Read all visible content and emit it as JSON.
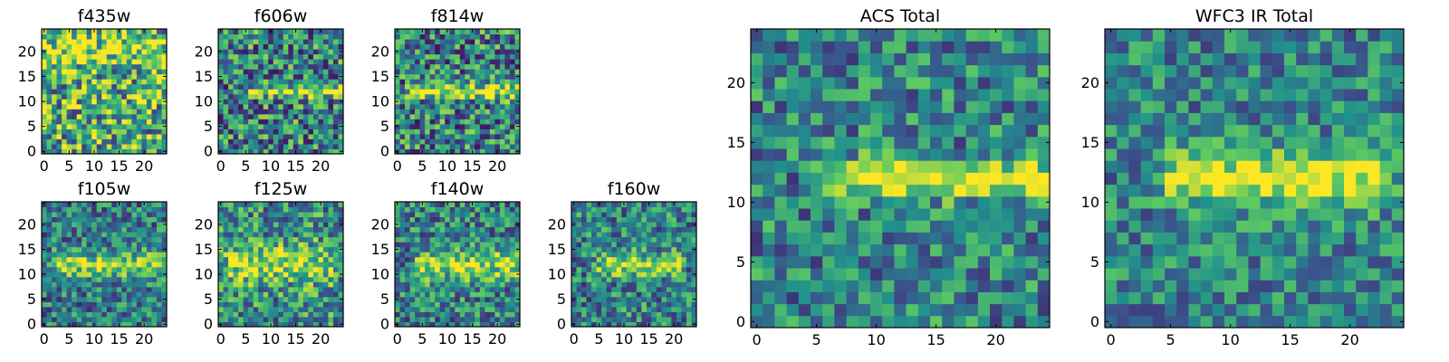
{
  "figure": {
    "colormap": [
      "#440154",
      "#3b528b",
      "#21918c",
      "#5ec962",
      "#fde725"
    ]
  },
  "chart_data": [
    {
      "type": "heatmap",
      "title": "f435w",
      "xticks": [
        0,
        5,
        10,
        15,
        20
      ],
      "yticks": [
        0,
        5,
        10,
        15,
        20
      ],
      "grid_size": 25,
      "features": [
        {
          "row": 20,
          "col": 0,
          "row_width": 3,
          "amp": 0.25
        }
      ],
      "base": 0.62,
      "noise": 0.45,
      "seed": 11
    },
    {
      "type": "heatmap",
      "title": "f606w",
      "xticks": [
        0,
        5,
        10,
        15,
        20
      ],
      "yticks": [
        0,
        5,
        10,
        15,
        20
      ],
      "grid_size": 25,
      "features": [
        {
          "row": 12,
          "col_start": 7,
          "col_end": 24,
          "row_width": 1.2,
          "amp": 0.45
        }
      ],
      "base": 0.45,
      "noise": 0.4,
      "seed": 23
    },
    {
      "type": "heatmap",
      "title": "f814w",
      "xticks": [
        0,
        5,
        10,
        15,
        20
      ],
      "yticks": [
        0,
        5,
        10,
        15,
        20
      ],
      "grid_size": 25,
      "features": [
        {
          "row": 12,
          "col_start": 4,
          "col_end": 24,
          "row_width": 1.4,
          "amp": 0.5
        }
      ],
      "base": 0.45,
      "noise": 0.4,
      "seed": 37
    },
    {
      "type": "heatmap",
      "title": "f105w",
      "xticks": [
        0,
        5,
        10,
        15,
        20
      ],
      "yticks": [
        0,
        5,
        10,
        15,
        20
      ],
      "grid_size": 25,
      "features": [
        {
          "row": 12,
          "col_start": 3,
          "col_end": 24,
          "row_width": 2.5,
          "amp": 0.4
        }
      ],
      "base": 0.42,
      "noise": 0.3,
      "seed": 41
    },
    {
      "type": "heatmap",
      "title": "f125w",
      "xticks": [
        0,
        5,
        10,
        15,
        20
      ],
      "yticks": [
        0,
        5,
        10,
        15,
        20
      ],
      "grid_size": 25,
      "features": [
        {
          "row": 12,
          "col_start": 2,
          "col_end": 22,
          "row_width": 3.5,
          "amp": 0.35
        }
      ],
      "base": 0.5,
      "noise": 0.35,
      "seed": 53
    },
    {
      "type": "heatmap",
      "title": "f140w",
      "xticks": [
        0,
        5,
        10,
        15,
        20
      ],
      "yticks": [
        0,
        5,
        10,
        15,
        20
      ],
      "grid_size": 25,
      "features": [
        {
          "row": 12,
          "col_start": 5,
          "col_end": 24,
          "row_width": 3.0,
          "amp": 0.4
        }
      ],
      "base": 0.45,
      "noise": 0.32,
      "seed": 67
    },
    {
      "type": "heatmap",
      "title": "f160w",
      "xticks": [
        0,
        5,
        10,
        15,
        20
      ],
      "yticks": [
        0,
        5,
        10,
        15,
        20
      ],
      "grid_size": 25,
      "features": [
        {
          "row": 12,
          "col_start": 6,
          "col_end": 20,
          "row_width": 2.2,
          "amp": 0.45
        }
      ],
      "base": 0.45,
      "noise": 0.32,
      "seed": 79
    },
    {
      "type": "heatmap",
      "title": "ACS Total",
      "xticks": [
        0,
        5,
        10,
        15,
        20
      ],
      "yticks": [
        0,
        5,
        10,
        15,
        20
      ],
      "grid_size": 25,
      "features": [
        {
          "row": 12,
          "col_start": 7,
          "col_end": 24,
          "row_width": 1.6,
          "amp": 0.55
        }
      ],
      "base": 0.45,
      "noise": 0.3,
      "seed": 89
    },
    {
      "type": "heatmap",
      "title": "WFC3 IR Total",
      "xticks": [
        0,
        5,
        10,
        15,
        20
      ],
      "yticks": [
        0,
        5,
        10,
        15,
        20
      ],
      "grid_size": 25,
      "features": [
        {
          "row": 12,
          "col_start": 6,
          "col_end": 22,
          "row_width": 2.3,
          "amp": 0.5
        }
      ],
      "base": 0.45,
      "noise": 0.26,
      "seed": 97
    }
  ]
}
